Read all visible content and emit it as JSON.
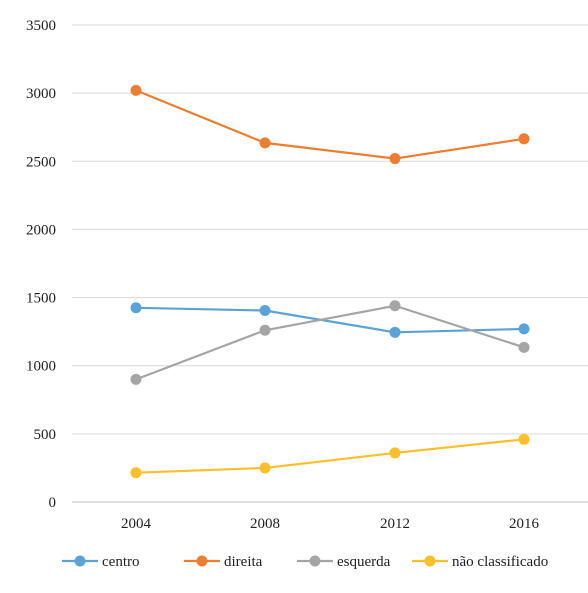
{
  "chart_data": {
    "type": "line",
    "title": "",
    "xlabel": "",
    "ylabel": "",
    "categories": [
      "2004",
      "2008",
      "2012",
      "2016"
    ],
    "ylim": [
      0,
      3500
    ],
    "yticks": [
      0,
      500,
      1000,
      1500,
      2000,
      2500,
      3000,
      3500
    ],
    "grid": true,
    "legend_position": "bottom",
    "series": [
      {
        "name": "centro",
        "color": "#5ba3d6",
        "values": [
          1425,
          1405,
          1245,
          1270
        ]
      },
      {
        "name": "direita",
        "color": "#ed7d31",
        "values": [
          3020,
          2635,
          2520,
          2665
        ]
      },
      {
        "name": "esquerda",
        "color": "#a5a5a5",
        "values": [
          900,
          1260,
          1440,
          1135
        ]
      },
      {
        "name": "não classificado",
        "color": "#fbbf2a",
        "values": [
          215,
          250,
          360,
          460
        ]
      }
    ]
  }
}
